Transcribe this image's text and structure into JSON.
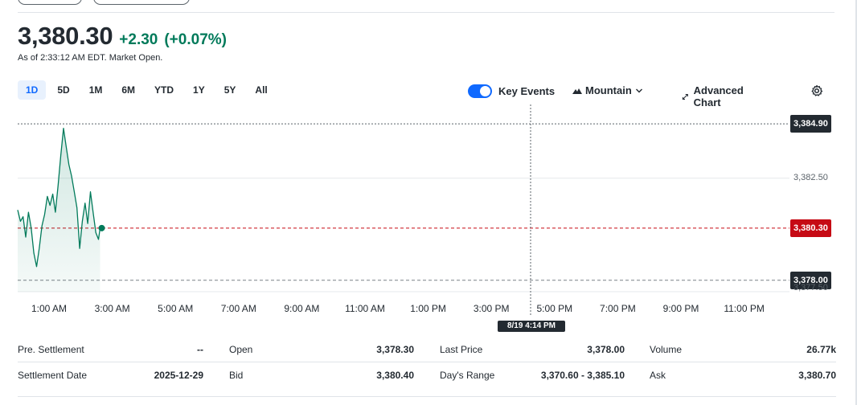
{
  "quote": {
    "price": "3,380.30",
    "change": "+2.30",
    "change_pct": "(+0.07%)",
    "as_of": "As of 2:33:12 AM EDT. Market Open."
  },
  "ranges": [
    "1D",
    "5D",
    "1M",
    "6M",
    "YTD",
    "1Y",
    "5Y",
    "All"
  ],
  "active_range": "1D",
  "tools": {
    "key_events": "Key Events",
    "key_events_on": true,
    "chart_style": "Mountain",
    "advanced_chart": "Advanced Chart"
  },
  "colors": {
    "accent": "#0f69ff",
    "positive": "#007a5a",
    "marker_dark": "#232a31",
    "marker_red": "#c60a14"
  },
  "chart_data": {
    "type": "area",
    "series": [
      {
        "x": [
          "00:00",
          "00:05",
          "00:10",
          "00:15",
          "00:20",
          "00:25",
          "00:30",
          "00:35",
          "00:40",
          "00:45",
          "00:50",
          "00:55",
          "01:00",
          "01:05",
          "01:10",
          "01:15",
          "01:20",
          "01:25",
          "01:30",
          "01:35",
          "01:40",
          "01:45",
          "01:50",
          "01:55",
          "02:00",
          "02:05",
          "02:10",
          "02:15",
          "02:20",
          "02:25",
          "02:30",
          "02:33"
        ],
        "values": [
          3381.1,
          3380.6,
          3380.8,
          3379.9,
          3381.0,
          3380.3,
          3379.2,
          3378.6,
          3379.4,
          3380.4,
          3380.9,
          3381.7,
          3381.3,
          3381.8,
          3381.0,
          3382.2,
          3383.5,
          3384.7,
          3383.9,
          3383.1,
          3382.6,
          3381.9,
          3381.2,
          3379.4,
          3380.6,
          3381.4,
          3380.5,
          3381.9,
          3381.0,
          3380.1,
          3379.8,
          3380.3
        ]
      }
    ],
    "ylim": [
      3377.6,
      3385.4
    ],
    "y_ticks": [
      "3,382.50",
      "3,377.50"
    ],
    "x_ticks": [
      "1:00 AM",
      "3:00 AM",
      "5:00 AM",
      "7:00 AM",
      "9:00 AM",
      "11:00 AM",
      "1:00 PM",
      "3:00 PM",
      "5:00 PM",
      "7:00 PM",
      "9:00 PM",
      "11:00 PM"
    ],
    "reference_lines": [
      {
        "value": 3384.9,
        "label": "3,384.90",
        "style": "high"
      },
      {
        "value": 3380.3,
        "label": "3,380.30",
        "style": "current"
      },
      {
        "value": 3378.0,
        "label": "3,378.00",
        "style": "low"
      }
    ],
    "crosshair_label": "8/19 4:14 PM"
  },
  "stats": [
    [
      {
        "label": "Pre. Settlement",
        "value": "--"
      },
      {
        "label": "Open",
        "value": "3,378.30"
      },
      {
        "label": "Last Price",
        "value": "3,378.00"
      },
      {
        "label": "Volume",
        "value": "26.77k"
      }
    ],
    [
      {
        "label": "Settlement Date",
        "value": "2025-12-29"
      },
      {
        "label": "Bid",
        "value": "3,380.40"
      },
      {
        "label": "Day's Range",
        "value": "3,370.60 - 3,385.10"
      },
      {
        "label": "Ask",
        "value": "3,380.70"
      }
    ]
  ]
}
